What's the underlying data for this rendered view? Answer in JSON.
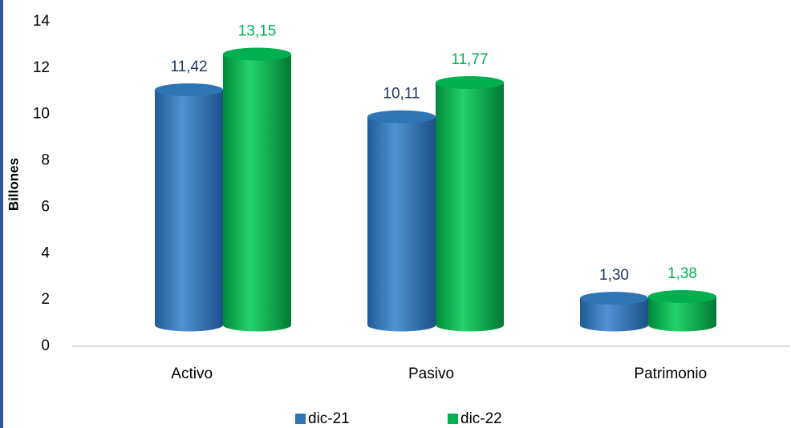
{
  "chart_data": {
    "type": "bar3d",
    "y_label": "Billones",
    "categories": [
      "Activo",
      "Pasivo",
      "Patrimonio"
    ],
    "series": [
      {
        "name": "dic-21",
        "color": "#2e75b6",
        "label_color": "#1f3864",
        "values": [
          11.42,
          10.11,
          1.3
        ],
        "value_labels": [
          "11,42",
          "10,11",
          "1,30"
        ]
      },
      {
        "name": "dic-22",
        "color": "#00b050",
        "label_color": "#00b050",
        "values": [
          13.15,
          11.77,
          1.38
        ],
        "value_labels": [
          "13,15",
          "11,77",
          "1,38"
        ]
      }
    ],
    "ylim": [
      0,
      14
    ],
    "yticks": [
      0,
      2,
      4,
      6,
      8,
      10,
      12,
      14
    ],
    "legend": "bottom"
  }
}
